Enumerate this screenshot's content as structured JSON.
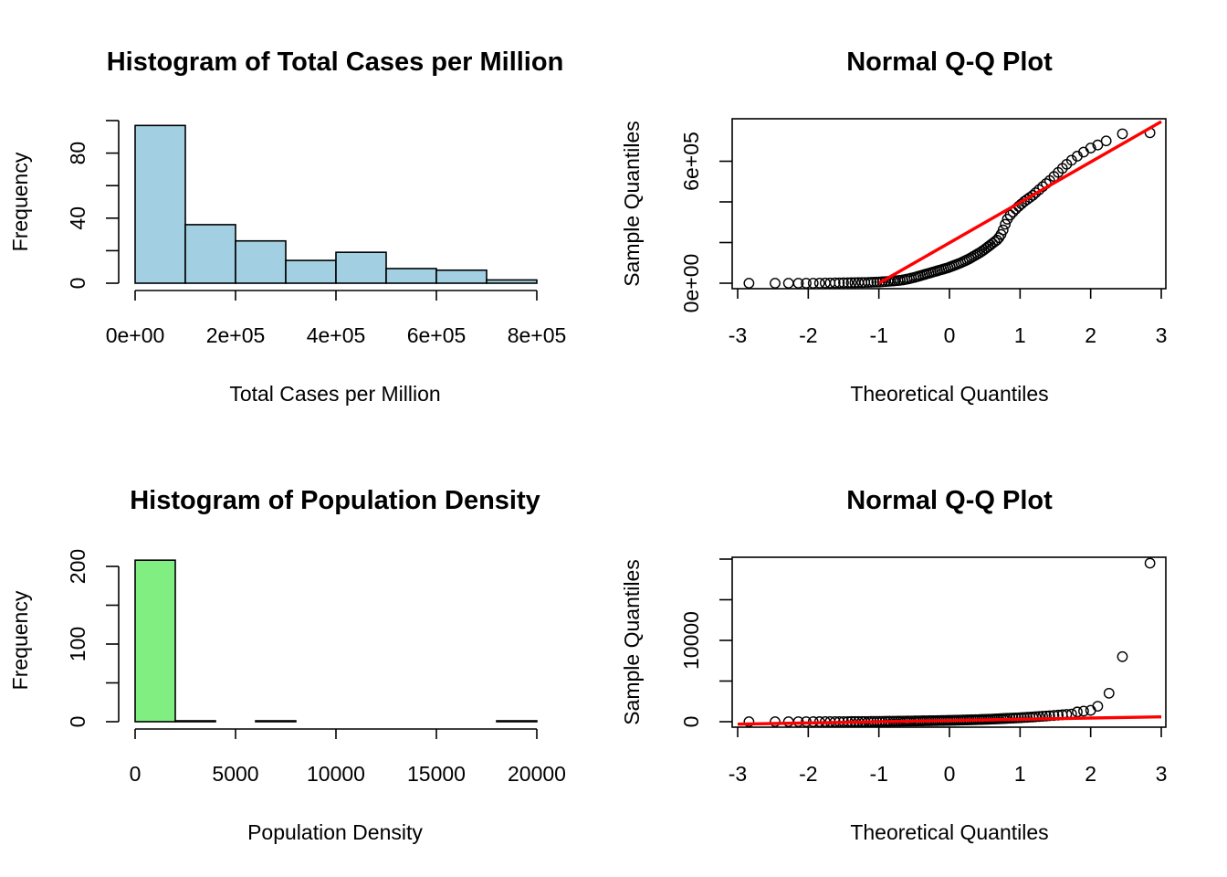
{
  "figure": {
    "background": "#ffffff"
  },
  "chart_data": [
    {
      "type": "bar",
      "subtype": "histogram",
      "title": "Histogram of Total Cases per Million",
      "xlabel": "Total Cases per Million",
      "ylabel": "Frequency",
      "bin_edges": [
        0,
        100000,
        200000,
        300000,
        400000,
        500000,
        600000,
        700000,
        800000
      ],
      "values": [
        97,
        36,
        26,
        14,
        19,
        9,
        8,
        2
      ],
      "xlim": [
        0,
        800000
      ],
      "ylim": [
        0,
        100
      ],
      "xticks": [
        0,
        200000,
        400000,
        600000,
        800000
      ],
      "xtick_labels": [
        "0e+00",
        "2e+05",
        "4e+05",
        "6e+05",
        "8e+05"
      ],
      "yticks": [
        0,
        20,
        40,
        60,
        80,
        100
      ],
      "ytick_labels": [
        "0",
        "",
        "40",
        "",
        "80",
        ""
      ],
      "fill": "#a2d0e2",
      "grid": false
    },
    {
      "type": "scatter",
      "subtype": "qq-plot",
      "title": "Normal Q-Q Plot",
      "xlabel": "Theoretical Quantiles",
      "ylabel": "Sample Quantiles",
      "xlim": [
        -3,
        3
      ],
      "ylim": [
        0,
        800000
      ],
      "xticks": [
        -3,
        -2,
        -1,
        0,
        1,
        2,
        3
      ],
      "xtick_labels": [
        "-3",
        "-2",
        "-1",
        "0",
        "1",
        "2",
        "3"
      ],
      "yticks": [
        0,
        200000,
        400000,
        600000
      ],
      "ytick_labels": [
        "0e+00",
        "",
        "",
        "6e+05"
      ],
      "points": [
        [
          -2.84,
          0
        ],
        [
          -2.47,
          0
        ],
        [
          -2.28,
          0
        ],
        [
          -2.14,
          0
        ],
        [
          -2.03,
          0
        ],
        [
          -1.93,
          0
        ],
        [
          -1.84,
          500
        ],
        [
          -1.76,
          1000
        ],
        [
          -1.69,
          1000
        ],
        [
          -1.62,
          1500
        ],
        [
          -1.56,
          1500
        ],
        [
          -1.5,
          2000
        ],
        [
          -1.44,
          2000
        ],
        [
          -1.39,
          2500
        ],
        [
          -1.34,
          2500
        ],
        [
          -1.29,
          3000
        ],
        [
          -1.24,
          3000
        ],
        [
          -1.2,
          3500
        ],
        [
          -1.15,
          4000
        ],
        [
          -1.11,
          4500
        ],
        [
          -1.07,
          5000
        ],
        [
          -1.03,
          5500
        ],
        [
          -0.99,
          6000
        ],
        [
          -0.95,
          7000
        ],
        [
          -0.91,
          8000
        ],
        [
          -0.87,
          9000
        ],
        [
          -0.84,
          10000
        ],
        [
          -0.8,
          11000
        ],
        [
          -0.77,
          12000
        ],
        [
          -0.73,
          13000
        ],
        [
          -0.7,
          14000
        ],
        [
          -0.66,
          16000
        ],
        [
          -0.63,
          18000
        ],
        [
          -0.6,
          20000
        ],
        [
          -0.57,
          22000
        ],
        [
          -0.54,
          25000
        ],
        [
          -0.5,
          28000
        ],
        [
          -0.47,
          31000
        ],
        [
          -0.44,
          34000
        ],
        [
          -0.41,
          37000
        ],
        [
          -0.38,
          40000
        ],
        [
          -0.35,
          43000
        ],
        [
          -0.32,
          46000
        ],
        [
          -0.29,
          49000
        ],
        [
          -0.26,
          52000
        ],
        [
          -0.23,
          55000
        ],
        [
          -0.2,
          58000
        ],
        [
          -0.17,
          61000
        ],
        [
          -0.14,
          64000
        ],
        [
          -0.11,
          67000
        ],
        [
          -0.08,
          70000
        ],
        [
          -0.05,
          73000
        ],
        [
          -0.02,
          76000
        ],
        [
          0.01,
          80000
        ],
        [
          0.04,
          84000
        ],
        [
          0.07,
          88000
        ],
        [
          0.1,
          92000
        ],
        [
          0.13,
          96000
        ],
        [
          0.16,
          100000
        ],
        [
          0.19,
          105000
        ],
        [
          0.22,
          110000
        ],
        [
          0.25,
          115000
        ],
        [
          0.28,
          120000
        ],
        [
          0.31,
          126000
        ],
        [
          0.34,
          132000
        ],
        [
          0.37,
          138000
        ],
        [
          0.4,
          144000
        ],
        [
          0.43,
          150000
        ],
        [
          0.46,
          157000
        ],
        [
          0.49,
          164000
        ],
        [
          0.52,
          172000
        ],
        [
          0.55,
          180000
        ],
        [
          0.58,
          188000
        ],
        [
          0.61,
          196000
        ],
        [
          0.64,
          204000
        ],
        [
          0.67,
          212000
        ],
        [
          0.7,
          224000
        ],
        [
          0.73,
          240000
        ],
        [
          0.76,
          262000
        ],
        [
          0.79,
          290000
        ],
        [
          0.82,
          315000
        ],
        [
          0.86,
          335000
        ],
        [
          0.9,
          350000
        ],
        [
          0.94,
          365000
        ],
        [
          0.98,
          378000
        ],
        [
          1.02,
          390000
        ],
        [
          1.06,
          402000
        ],
        [
          1.1,
          412000
        ],
        [
          1.14,
          422000
        ],
        [
          1.18,
          432000
        ],
        [
          1.22,
          445000
        ],
        [
          1.27,
          460000
        ],
        [
          1.32,
          475000
        ],
        [
          1.37,
          490000
        ],
        [
          1.42,
          505000
        ],
        [
          1.48,
          525000
        ],
        [
          1.54,
          545000
        ],
        [
          1.6,
          565000
        ],
        [
          1.66,
          585000
        ],
        [
          1.73,
          605000
        ],
        [
          1.81,
          625000
        ],
        [
          1.9,
          645000
        ],
        [
          2.0,
          665000
        ],
        [
          2.1,
          680000
        ],
        [
          2.22,
          700000
        ],
        [
          2.45,
          735000
        ],
        [
          2.84,
          740000
        ]
      ],
      "reference_line": {
        "x": [
          -1,
          3
        ],
        "y": [
          0,
          795000
        ]
      },
      "point_color": "#000000",
      "line_color": "#ff0000",
      "grid": false
    },
    {
      "type": "bar",
      "subtype": "histogram",
      "title": "Histogram of Population Density",
      "xlabel": "Population Density",
      "ylabel": "Frequency",
      "bin_edges": [
        0,
        2000,
        4000,
        6000,
        8000,
        10000,
        12000,
        14000,
        16000,
        18000,
        20000
      ],
      "values": [
        208,
        1,
        0,
        1,
        0,
        0,
        0,
        0,
        0,
        1
      ],
      "xlim": [
        0,
        20000
      ],
      "ylim": [
        0,
        200
      ],
      "xticks": [
        0,
        5000,
        10000,
        15000,
        20000
      ],
      "xtick_labels": [
        "0",
        "5000",
        "10000",
        "15000",
        "20000"
      ],
      "yticks": [
        0,
        50,
        100,
        150,
        200
      ],
      "ytick_labels": [
        "0",
        "",
        "100",
        "",
        "200"
      ],
      "fill": "#80ee80",
      "grid": false
    },
    {
      "type": "scatter",
      "subtype": "qq-plot",
      "title": "Normal Q-Q Plot",
      "xlabel": "Theoretical Quantiles",
      "ylabel": "Sample Quantiles",
      "xlim": [
        -3,
        3
      ],
      "ylim": [
        0,
        20000
      ],
      "xticks": [
        -3,
        -2,
        -1,
        0,
        1,
        2,
        3
      ],
      "xtick_labels": [
        "-3",
        "-2",
        "-1",
        "0",
        "1",
        "2",
        "3"
      ],
      "yticks": [
        0,
        5000,
        10000,
        15000,
        20000
      ],
      "ytick_labels": [
        "0",
        "",
        "10000",
        "",
        ""
      ],
      "points": [
        [
          -2.84,
          0
        ],
        [
          -2.47,
          0
        ],
        [
          -2.28,
          0
        ],
        [
          -2.14,
          2
        ],
        [
          -2.03,
          3
        ],
        [
          -1.93,
          5
        ],
        [
          -1.84,
          6
        ],
        [
          -1.76,
          8
        ],
        [
          -1.69,
          10
        ],
        [
          -1.62,
          12
        ],
        [
          -1.56,
          14
        ],
        [
          -1.5,
          16
        ],
        [
          -1.44,
          18
        ],
        [
          -1.39,
          20
        ],
        [
          -1.34,
          22
        ],
        [
          -1.29,
          24
        ],
        [
          -1.24,
          26
        ],
        [
          -1.2,
          28
        ],
        [
          -1.15,
          30
        ],
        [
          -1.11,
          33
        ],
        [
          -1.07,
          36
        ],
        [
          -1.03,
          39
        ],
        [
          -0.99,
          42
        ],
        [
          -0.95,
          45
        ],
        [
          -0.91,
          48
        ],
        [
          -0.87,
          51
        ],
        [
          -0.84,
          54
        ],
        [
          -0.8,
          57
        ],
        [
          -0.77,
          60
        ],
        [
          -0.73,
          63
        ],
        [
          -0.7,
          66
        ],
        [
          -0.66,
          70
        ],
        [
          -0.63,
          74
        ],
        [
          -0.6,
          78
        ],
        [
          -0.57,
          82
        ],
        [
          -0.54,
          86
        ],
        [
          -0.5,
          90
        ],
        [
          -0.47,
          94
        ],
        [
          -0.44,
          98
        ],
        [
          -0.41,
          102
        ],
        [
          -0.38,
          106
        ],
        [
          -0.35,
          110
        ],
        [
          -0.32,
          114
        ],
        [
          -0.29,
          118
        ],
        [
          -0.26,
          122
        ],
        [
          -0.23,
          126
        ],
        [
          -0.2,
          130
        ],
        [
          -0.17,
          135
        ],
        [
          -0.14,
          140
        ],
        [
          -0.11,
          145
        ],
        [
          -0.08,
          150
        ],
        [
          -0.05,
          155
        ],
        [
          -0.02,
          160
        ],
        [
          0.01,
          166
        ],
        [
          0.04,
          172
        ],
        [
          0.07,
          178
        ],
        [
          0.1,
          184
        ],
        [
          0.13,
          190
        ],
        [
          0.16,
          196
        ],
        [
          0.19,
          203
        ],
        [
          0.22,
          210
        ],
        [
          0.25,
          217
        ],
        [
          0.28,
          224
        ],
        [
          0.31,
          232
        ],
        [
          0.34,
          240
        ],
        [
          0.37,
          248
        ],
        [
          0.4,
          256
        ],
        [
          0.43,
          265
        ],
        [
          0.46,
          274
        ],
        [
          0.49,
          283
        ],
        [
          0.52,
          293
        ],
        [
          0.55,
          303
        ],
        [
          0.58,
          313
        ],
        [
          0.61,
          324
        ],
        [
          0.64,
          335
        ],
        [
          0.67,
          347
        ],
        [
          0.7,
          359
        ],
        [
          0.73,
          372
        ],
        [
          0.76,
          385
        ],
        [
          0.79,
          399
        ],
        [
          0.82,
          413
        ],
        [
          0.86,
          428
        ],
        [
          0.9,
          444
        ],
        [
          0.94,
          461
        ],
        [
          0.98,
          479
        ],
        [
          1.02,
          498
        ],
        [
          1.06,
          518
        ],
        [
          1.1,
          539
        ],
        [
          1.14,
          561
        ],
        [
          1.18,
          585
        ],
        [
          1.22,
          610
        ],
        [
          1.27,
          637
        ],
        [
          1.32,
          666
        ],
        [
          1.37,
          697
        ],
        [
          1.42,
          730
        ],
        [
          1.48,
          766
        ],
        [
          1.54,
          805
        ],
        [
          1.6,
          847
        ],
        [
          1.66,
          893
        ],
        [
          1.73,
          944
        ],
        [
          1.81,
          1200
        ],
        [
          1.9,
          1300
        ],
        [
          2.0,
          1400
        ],
        [
          2.1,
          1900
        ],
        [
          2.26,
          3500
        ],
        [
          2.45,
          8000
        ],
        [
          2.84,
          19500
        ]
      ],
      "reference_line": {
        "x": [
          -3,
          3
        ],
        "y": [
          -300,
          600
        ]
      },
      "point_color": "#000000",
      "line_color": "#ff0000",
      "grid": false
    }
  ]
}
